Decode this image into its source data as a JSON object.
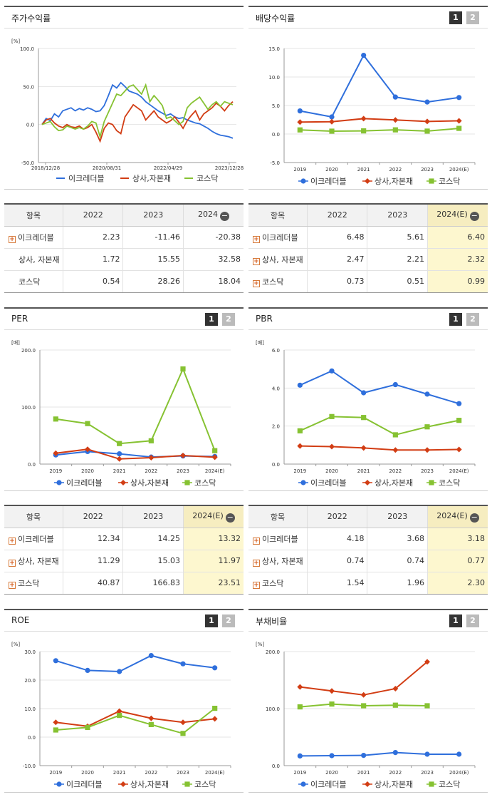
{
  "colors": {
    "company": "#2f6fdc",
    "industry": "#d23d14",
    "kosdaq": "#86c232"
  },
  "panels": [
    {
      "id": "stock",
      "title": "주가수익률",
      "pager": false,
      "unit": "[%]"
    },
    {
      "id": "dividend",
      "title": "배당수익률",
      "pager": true,
      "unit": ""
    },
    {
      "id": "per",
      "title": "PER",
      "pager": true,
      "unit": "[배]"
    },
    {
      "id": "pbr",
      "title": "PBR",
      "pager": true,
      "unit": "[배]"
    },
    {
      "id": "roe",
      "title": "ROE",
      "pager": true,
      "unit": "[%]"
    },
    {
      "id": "debt",
      "title": "부채비율",
      "pager": true,
      "unit": "[%]"
    }
  ],
  "pager_labels": [
    "1",
    "2"
  ],
  "legend": [
    "이크레더블",
    "상사,자본재",
    "코스닥"
  ],
  "chart_data": [
    {
      "id": "stock",
      "type": "line",
      "title": "주가수익률",
      "ylabel": "[%]",
      "ylim": [
        -50,
        100
      ],
      "yticks": [
        "100.0",
        "50.0",
        "0.0",
        "-50.0"
      ],
      "xticks": [
        "2018/12/28",
        "2020/08/31",
        "2022/04/29",
        "2023/12/28"
      ],
      "series": [
        {
          "name": "이크레더블",
          "values": [
            0,
            8,
            5,
            14,
            10,
            18,
            20,
            22,
            18,
            21,
            19,
            22,
            20,
            17,
            18,
            25,
            38,
            52,
            48,
            55,
            50,
            44,
            42,
            40,
            36,
            30,
            26,
            22,
            18,
            15,
            12,
            14,
            10,
            8,
            9,
            6,
            4,
            2,
            1,
            -2,
            -5,
            -9,
            -12,
            -14,
            -15,
            -16,
            -18
          ]
        },
        {
          "name": "상사,자본재",
          "values": [
            0,
            6,
            8,
            2,
            -2,
            -4,
            0,
            -3,
            -4,
            -2,
            -6,
            -4,
            0,
            -10,
            -22,
            -5,
            2,
            0,
            -8,
            -12,
            10,
            18,
            26,
            22,
            18,
            6,
            12,
            18,
            10,
            6,
            2,
            5,
            10,
            3,
            -5,
            5,
            12,
            18,
            6,
            14,
            18,
            22,
            28,
            24,
            18,
            25,
            30
          ]
        },
        {
          "name": "코스닥",
          "values": [
            0,
            2,
            4,
            -3,
            -8,
            -7,
            -2,
            -4,
            -6,
            -4,
            -6,
            -2,
            4,
            2,
            -16,
            4,
            16,
            28,
            40,
            38,
            44,
            50,
            52,
            46,
            40,
            52,
            30,
            38,
            32,
            25,
            8,
            10,
            5,
            0,
            4,
            22,
            28,
            32,
            36,
            28,
            20,
            26,
            30,
            24,
            30,
            28,
            26
          ]
        }
      ]
    },
    {
      "id": "dividend",
      "type": "line",
      "title": "배당수익률",
      "ylim": [
        -5,
        15
      ],
      "yticks": [
        "15.0",
        "10.0",
        "5.0",
        "0.0",
        "-5.0"
      ],
      "categories": [
        "2019",
        "2020",
        "2021",
        "2022",
        "2023",
        "2024(E)"
      ],
      "series": [
        {
          "name": "이크레더블",
          "values": [
            4.05,
            3.0,
            13.8,
            6.48,
            5.61,
            6.4
          ]
        },
        {
          "name": "상사,자본재",
          "values": [
            2.1,
            2.15,
            2.7,
            2.47,
            2.21,
            2.32
          ]
        },
        {
          "name": "코스닥",
          "values": [
            0.72,
            0.5,
            0.55,
            0.73,
            0.51,
            0.99
          ]
        }
      ]
    },
    {
      "id": "per",
      "type": "line",
      "title": "PER",
      "ylabel": "[배]",
      "ylim": [
        0,
        200
      ],
      "yticks": [
        "200.0",
        "100.0",
        "0.0"
      ],
      "categories": [
        "2019",
        "2020",
        "2021",
        "2022",
        "2023",
        "2024(E)"
      ],
      "series": [
        {
          "name": "이크레더블",
          "values": [
            16,
            22,
            18,
            12.34,
            14.25,
            13.32
          ]
        },
        {
          "name": "상사,자본재",
          "values": [
            19,
            26,
            9,
            11.29,
            15.03,
            11.97
          ]
        },
        {
          "name": "코스닥",
          "values": [
            79,
            71,
            36,
            40.87,
            166.83,
            23.51
          ]
        }
      ]
    },
    {
      "id": "pbr",
      "type": "line",
      "title": "PBR",
      "ylabel": "[배]",
      "ylim": [
        0,
        6
      ],
      "yticks": [
        "6.0",
        "4.0",
        "2.0",
        "0.0"
      ],
      "categories": [
        "2019",
        "2020",
        "2021",
        "2022",
        "2023",
        "2024(E)"
      ],
      "series": [
        {
          "name": "이크레더블",
          "values": [
            4.15,
            4.9,
            3.75,
            4.18,
            3.68,
            3.18
          ]
        },
        {
          "name": "상사,자본재",
          "values": [
            0.95,
            0.92,
            0.85,
            0.74,
            0.74,
            0.77
          ]
        },
        {
          "name": "코스닥",
          "values": [
            1.75,
            2.5,
            2.45,
            1.54,
            1.96,
            2.3
          ]
        }
      ]
    },
    {
      "id": "roe",
      "type": "line",
      "title": "ROE",
      "ylabel": "[%]",
      "ylim": [
        -10,
        30
      ],
      "yticks": [
        "30.0",
        "20.0",
        "10.0",
        "0.0",
        "-10.0"
      ],
      "categories": [
        "2019",
        "2020",
        "2021",
        "2022",
        "2023",
        "2024(E)"
      ],
      "series": [
        {
          "name": "이크레더블",
          "values": [
            26.8,
            23.4,
            23.0,
            28.6,
            25.7,
            24.3
          ]
        },
        {
          "name": "상사,자본재",
          "values": [
            5.2,
            3.8,
            9.1,
            6.6,
            5.2,
            6.4
          ]
        },
        {
          "name": "코스닥",
          "values": [
            2.5,
            3.4,
            7.6,
            4.4,
            1.3,
            10.1
          ]
        }
      ]
    },
    {
      "id": "debt",
      "type": "line",
      "title": "부채비율",
      "ylabel": "[%]",
      "ylim": [
        0,
        200
      ],
      "yticks": [
        "200.0",
        "100.0",
        "0.0"
      ],
      "categories": [
        "2019",
        "2020",
        "2021",
        "2022",
        "2023",
        "2024(E)"
      ],
      "series": [
        {
          "name": "이크레더블",
          "values": [
            17,
            17.5,
            18,
            23,
            20,
            20
          ]
        },
        {
          "name": "상사,자본재",
          "values": [
            138,
            131,
            124,
            135,
            182,
            null
          ]
        },
        {
          "name": "코스닥",
          "values": [
            103,
            108,
            105,
            106,
            105,
            null
          ]
        }
      ]
    }
  ],
  "tables": [
    {
      "id": "stock_tbl",
      "head": [
        "항목",
        "2022",
        "2023",
        "2024"
      ],
      "highlight_last": false,
      "rows": [
        {
          "label": "이크레더블",
          "plus": true,
          "values": [
            "2.23",
            "-11.46",
            "-20.38"
          ]
        },
        {
          "label": "상사, 자본재",
          "plus": false,
          "values": [
            "1.72",
            "15.55",
            "32.58"
          ]
        },
        {
          "label": "코스닥",
          "plus": false,
          "values": [
            "0.54",
            "28.26",
            "18.04"
          ]
        }
      ]
    },
    {
      "id": "dividend_tbl",
      "head": [
        "항목",
        "2022",
        "2023",
        "2024(E)"
      ],
      "highlight_last": true,
      "minus": false,
      "rows": [
        {
          "label": "이크레더블",
          "plus": true,
          "values": [
            "6.48",
            "5.61",
            "6.40"
          ]
        },
        {
          "label": "상사, 자본재",
          "plus": true,
          "values": [
            "2.47",
            "2.21",
            "2.32"
          ]
        },
        {
          "label": "코스닥",
          "plus": true,
          "values": [
            "0.73",
            "0.51",
            "0.99"
          ]
        }
      ]
    },
    {
      "id": "per_tbl",
      "head": [
        "항목",
        "2022",
        "2023",
        "2024(E)"
      ],
      "highlight_last": true,
      "rows": [
        {
          "label": "이크레더블",
          "plus": true,
          "values": [
            "12.34",
            "14.25",
            "13.32"
          ]
        },
        {
          "label": "상사, 자본재",
          "plus": true,
          "values": [
            "11.29",
            "15.03",
            "11.97"
          ]
        },
        {
          "label": "코스닥",
          "plus": true,
          "values": [
            "40.87",
            "166.83",
            "23.51"
          ]
        }
      ]
    },
    {
      "id": "pbr_tbl",
      "head": [
        "항목",
        "2022",
        "2023",
        "2024(E)"
      ],
      "highlight_last": true,
      "rows": [
        {
          "label": "이크레더블",
          "plus": true,
          "values": [
            "4.18",
            "3.68",
            "3.18"
          ]
        },
        {
          "label": "상사, 자본재",
          "plus": true,
          "values": [
            "0.74",
            "0.74",
            "0.77"
          ]
        },
        {
          "label": "코스닥",
          "plus": true,
          "values": [
            "1.54",
            "1.96",
            "2.30"
          ]
        }
      ]
    }
  ]
}
